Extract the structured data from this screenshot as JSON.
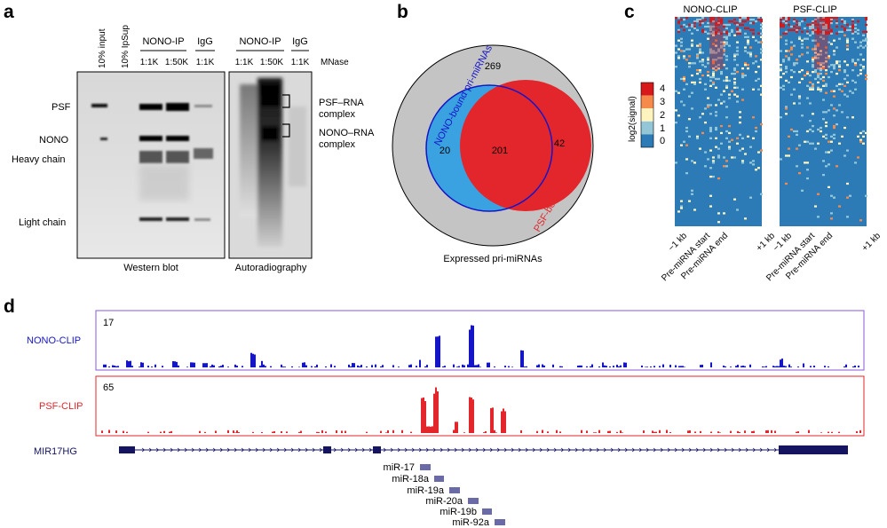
{
  "panel_labels": {
    "a": "a",
    "b": "b",
    "c": "c",
    "d": "d"
  },
  "panel_a": {
    "lane_headers": [
      "10% input",
      "10% IpSup"
    ],
    "groups": {
      "nono_ip": "NONO-IP",
      "igg": "IgG",
      "nono_ip_2": "NONO-IP",
      "igg_2": "IgG"
    },
    "ratios": {
      "r1": "1:1K",
      "r2": "1:50K",
      "r3": "1:1K",
      "r4": "1:1K",
      "r5": "1:50K",
      "r6": "1:1K"
    },
    "mnase": "MNase",
    "row_labels": {
      "psf": "PSF",
      "nono": "NONO",
      "heavy": "Heavy chain",
      "light": "Light chain"
    },
    "complexes": {
      "psf_rna_1": "PSF–RNA",
      "psf_rna_2": "complex",
      "nono_rna_1": "NONO–RNA",
      "nono_rna_2": "complex"
    },
    "captions": {
      "western": "Western blot",
      "autorad": "Autoradiography"
    }
  },
  "panel_b": {
    "outer_count": "269",
    "nono_only": "20",
    "overlap": "201",
    "psf_only": "42",
    "nono_label": "NONO-bound pri-miRNAs",
    "psf_label": "PSF-bound pri-miRNAs",
    "caption": "Expressed pri-miRNAs",
    "colors": {
      "outer": "#c4c4c4",
      "nono": "#3aa2e0",
      "psf": "#e3262b",
      "nono_outline": "#1515c8"
    }
  },
  "panel_c": {
    "titles": {
      "nono": "NONO-CLIP",
      "psf": "PSF-CLIP"
    },
    "legend_title": "log2(signal)",
    "legend_ticks": [
      "4",
      "3",
      "2",
      "1",
      "0"
    ],
    "legend_colors": [
      "#d7191c",
      "#f58a4b",
      "#fff4bd",
      "#93c6d6",
      "#2c7bb6"
    ],
    "axis_labels": {
      "a1": "−1 kb",
      "a2": "Pre-miRNA start",
      "a3": "Pre-miRNA end",
      "a4": "+1 kb",
      "b1": "−1 kb",
      "b2": "Pre-miRNA start",
      "b3": "Pre-miRNA end",
      "b4": "+1 kb"
    }
  },
  "panel_d": {
    "tracks": {
      "nono": {
        "name": "NONO-CLIP",
        "max": "17",
        "color": "#1515c8"
      },
      "psf": {
        "name": "PSF-CLIP",
        "max": "65",
        "color": "#e3262b"
      }
    },
    "gene": {
      "name": "MIR17HG",
      "color": "#141460"
    },
    "mirnas": {
      "m17": "miR-17",
      "m18a": "miR-18a",
      "m19a": "miR-19a",
      "m20a": "miR-20a",
      "m19b": "miR-19b",
      "m92a": "miR-92a"
    }
  }
}
